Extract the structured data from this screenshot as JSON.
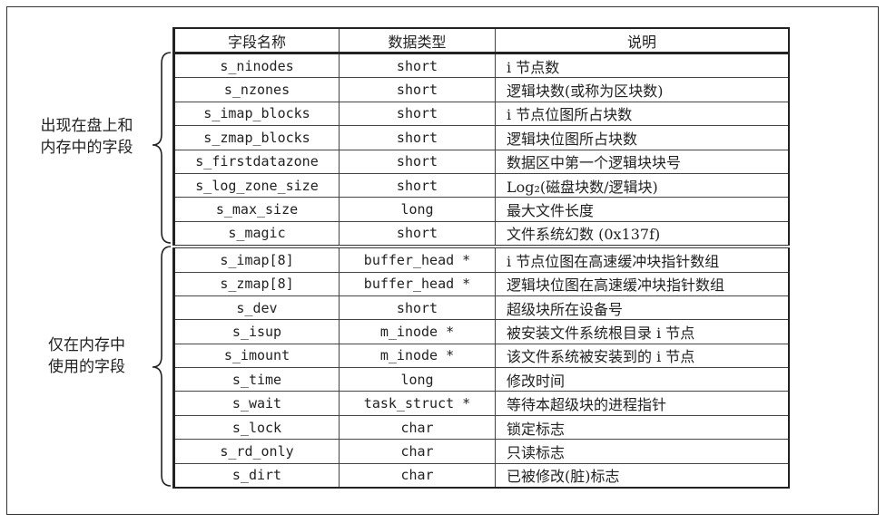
{
  "headers": [
    "字段名称",
    "数据类型",
    "说明"
  ],
  "groups": [
    {
      "label": "出现在盘上和\n内存中的字段"
    },
    {
      "label": "仅在内存中\n使用的字段"
    }
  ],
  "rows": [
    [
      "s_ninodes",
      "short",
      "i 节点数"
    ],
    [
      "s_nzones",
      "short",
      "逻辑块数(或称为区块数)"
    ],
    [
      "s_imap_blocks",
      "short",
      "i 节点位图所占块数"
    ],
    [
      "s_zmap_blocks",
      "short",
      "逻辑块位图所占块数"
    ],
    [
      "s_firstdatazone",
      "short",
      "数据区中第一个逻辑块块号"
    ],
    [
      "s_log_zone_size",
      "short",
      "Log₂(磁盘块数/逻辑块)"
    ],
    [
      "s_max_size",
      "long",
      "最大文件长度"
    ],
    [
      "s_magic",
      "short",
      "文件系统幻数 (0x137f)"
    ],
    [
      "s_imap[8]",
      "buffer_head *",
      "i 节点位图在高速缓冲块指针数组"
    ],
    [
      "s_zmap[8]",
      "buffer_head *",
      "逻辑块位图在高速缓冲块指针数组"
    ],
    [
      "s_dev",
      "short",
      "超级块所在设备号"
    ],
    [
      "s_isup",
      "m_inode *",
      "被安装文件系统根目录 i 节点"
    ],
    [
      "s_imount",
      "m_inode *",
      "该文件系统被安装到的 i 节点"
    ],
    [
      "s_time",
      "long",
      "修改时间"
    ],
    [
      "s_wait",
      "task_struct *",
      "等待本超级块的进程指针"
    ],
    [
      "s_lock",
      "char",
      "锁定标志"
    ],
    [
      "s_rd_only",
      "char",
      "只读标志"
    ],
    [
      "s_dirt",
      "char",
      "已被修改(脏)标志"
    ]
  ]
}
